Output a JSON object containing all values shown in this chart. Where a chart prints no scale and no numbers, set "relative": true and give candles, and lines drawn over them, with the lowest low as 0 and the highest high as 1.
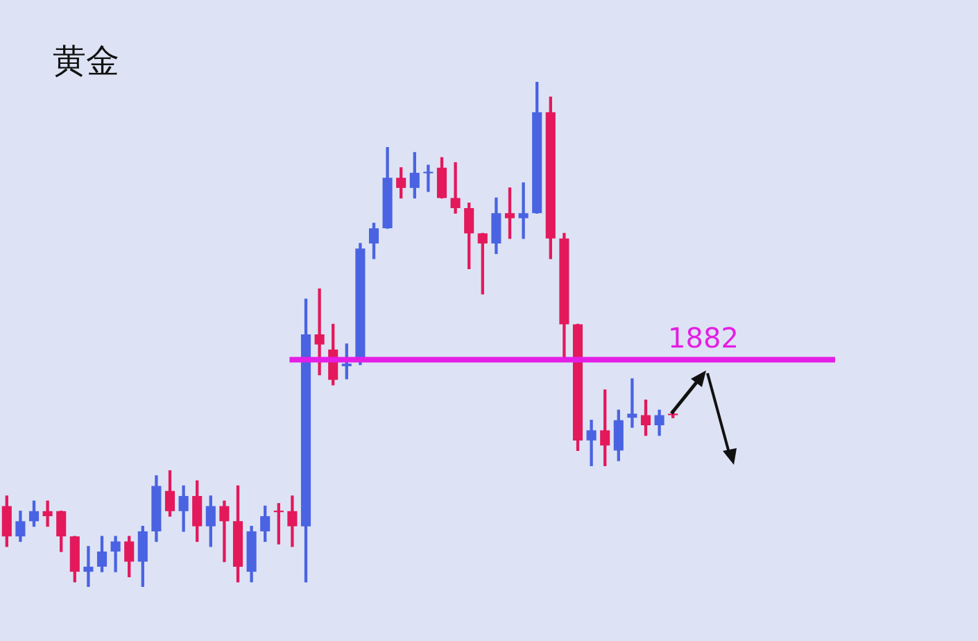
{
  "chart_data": {
    "type": "candlestick",
    "title": "黄金",
    "relative": true,
    "categories": [
      null,
      null,
      null,
      null,
      null,
      null,
      null,
      null,
      null,
      null,
      null,
      null,
      null,
      null,
      null,
      null,
      null,
      null,
      null,
      null,
      null,
      null,
      null,
      null,
      null,
      null,
      null,
      null,
      null,
      null,
      null,
      null,
      null,
      null,
      null,
      null,
      null,
      null,
      null,
      null,
      null,
      null,
      null,
      null,
      null,
      null,
      null,
      null,
      null,
      null
    ],
    "ohlc": [
      [
        0.16,
        0.18,
        0.08,
        0.1
      ],
      [
        0.1,
        0.15,
        0.09,
        0.13
      ],
      [
        0.13,
        0.17,
        0.12,
        0.15
      ],
      [
        0.15,
        0.17,
        0.12,
        0.14
      ],
      [
        0.15,
        0.15,
        0.07,
        0.1
      ],
      [
        0.1,
        0.1,
        0.01,
        0.03
      ],
      [
        0.03,
        0.08,
        0.0,
        0.04
      ],
      [
        0.04,
        0.1,
        0.03,
        0.07
      ],
      [
        0.07,
        0.1,
        0.03,
        0.09
      ],
      [
        0.09,
        0.1,
        0.02,
        0.05
      ],
      [
        0.05,
        0.12,
        0.0,
        0.11
      ],
      [
        0.11,
        0.22,
        0.09,
        0.2
      ],
      [
        0.19,
        0.23,
        0.14,
        0.15
      ],
      [
        0.15,
        0.2,
        0.11,
        0.18
      ],
      [
        0.18,
        0.21,
        0.09,
        0.12
      ],
      [
        0.12,
        0.18,
        0.08,
        0.16
      ],
      [
        0.16,
        0.17,
        0.05,
        0.13
      ],
      [
        0.13,
        0.2,
        0.01,
        0.04
      ],
      [
        0.03,
        0.12,
        0.01,
        0.11
      ],
      [
        0.11,
        0.16,
        0.09,
        0.14
      ],
      [
        0.151,
        0.165,
        0.085,
        0.148
      ],
      [
        0.15,
        0.18,
        0.08,
        0.12
      ],
      [
        0.12,
        0.57,
        0.01,
        0.5
      ],
      [
        0.5,
        0.59,
        0.42,
        0.48
      ],
      [
        0.47,
        0.52,
        0.4,
        0.41
      ],
      [
        0.437,
        0.481,
        0.412,
        0.442
      ],
      [
        0.45,
        0.68,
        0.44,
        0.67
      ],
      [
        0.68,
        0.72,
        0.65,
        0.71
      ],
      [
        0.71,
        0.87,
        0.71,
        0.81
      ],
      [
        0.81,
        0.83,
        0.77,
        0.79
      ],
      [
        0.79,
        0.86,
        0.77,
        0.82
      ],
      [
        0.819,
        0.835,
        0.783,
        0.822
      ],
      [
        0.83,
        0.85,
        0.77,
        0.77
      ],
      [
        0.77,
        0.84,
        0.74,
        0.75
      ],
      [
        0.75,
        0.76,
        0.63,
        0.7
      ],
      [
        0.7,
        0.7,
        0.58,
        0.68
      ],
      [
        0.68,
        0.77,
        0.66,
        0.74
      ],
      [
        0.74,
        0.79,
        0.69,
        0.73
      ],
      [
        0.73,
        0.8,
        0.69,
        0.74
      ],
      [
        0.74,
        1.0,
        0.74,
        0.94
      ],
      [
        0.94,
        0.97,
        0.65,
        0.69
      ],
      [
        0.69,
        0.7,
        0.45,
        0.52
      ],
      [
        0.52,
        0.52,
        0.27,
        0.29
      ],
      [
        0.29,
        0.33,
        0.24,
        0.31
      ],
      [
        0.31,
        0.39,
        0.24,
        0.28
      ],
      [
        0.27,
        0.35,
        0.25,
        0.33
      ],
      [
        0.335,
        0.412,
        0.316,
        0.343
      ],
      [
        0.34,
        0.37,
        0.3,
        0.32
      ],
      [
        0.32,
        0.35,
        0.3,
        0.34
      ],
      [
        0.343,
        0.349,
        0.335,
        0.34
      ]
    ],
    "colors": [
      "#e3195c",
      "#4a63e2",
      "#4a63e2",
      "#e3195c",
      "#e3195c",
      "#e3195c",
      "#4a63e2",
      "#4a63e2",
      "#4a63e2",
      "#e3195c",
      "#4a63e2",
      "#4a63e2",
      "#e3195c",
      "#4a63e2",
      "#e3195c",
      "#4a63e2",
      "#e3195c",
      "#e3195c",
      "#4a63e2",
      "#4a63e2",
      "#e3195c",
      "#e3195c",
      "#4a63e2",
      "#e3195c",
      "#e3195c",
      "#4a63e2",
      "#4a63e2",
      "#4a63e2",
      "#4a63e2",
      "#e3195c",
      "#4a63e2",
      "#4a63e2",
      "#e3195c",
      "#e3195c",
      "#e3195c",
      "#e3195c",
      "#4a63e2",
      "#e3195c",
      "#4a63e2",
      "#4a63e2",
      "#e3195c",
      "#e3195c",
      "#e3195c",
      "#4a63e2",
      "#e3195c",
      "#4a63e2",
      "#4a63e2",
      "#e3195c",
      "#4a63e2",
      "#e3195c"
    ],
    "ref_lines": [
      {
        "axis": "y",
        "value": 0.45,
        "color": "#e41ee4"
      }
    ],
    "annotations": [
      {
        "text": "1882",
        "y": 0.45
      }
    ]
  }
}
